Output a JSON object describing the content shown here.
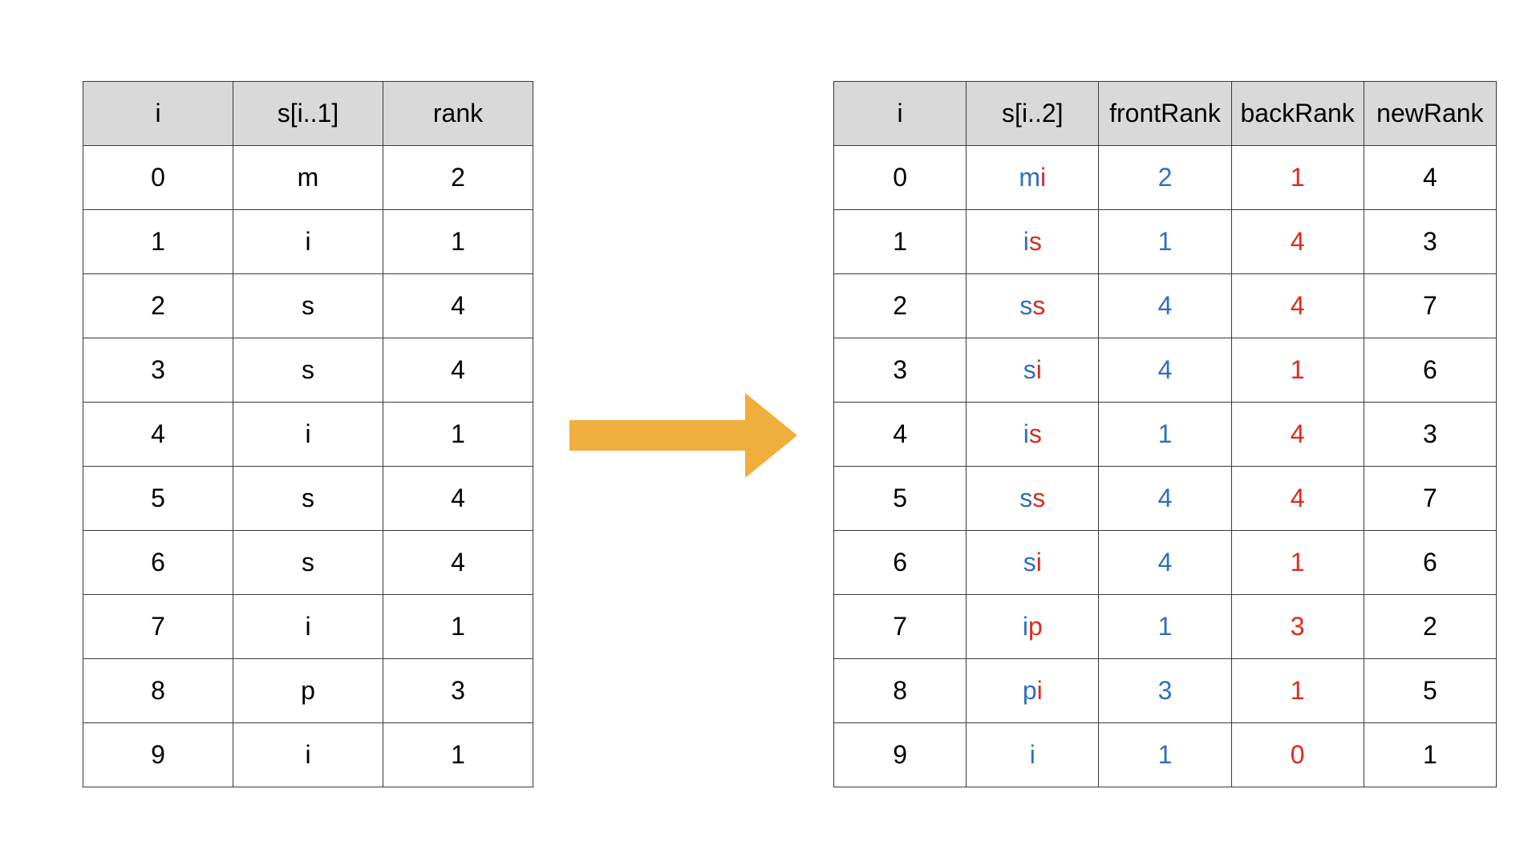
{
  "colors": {
    "header_bg": "#d9d9d9",
    "border": "#3a3a3a",
    "front_blue": "#2e6fbf",
    "back_red": "#de2a1b",
    "arrow_orange": "#f0ae3c"
  },
  "left_table": {
    "headers": [
      "i",
      "s[i..1]",
      "rank"
    ],
    "rows": [
      {
        "i": "0",
        "s": "m",
        "rank": "2"
      },
      {
        "i": "1",
        "s": "i",
        "rank": "1"
      },
      {
        "i": "2",
        "s": "s",
        "rank": "4"
      },
      {
        "i": "3",
        "s": "s",
        "rank": "4"
      },
      {
        "i": "4",
        "s": "i",
        "rank": "1"
      },
      {
        "i": "5",
        "s": "s",
        "rank": "4"
      },
      {
        "i": "6",
        "s": "s",
        "rank": "4"
      },
      {
        "i": "7",
        "s": "i",
        "rank": "1"
      },
      {
        "i": "8",
        "s": "p",
        "rank": "3"
      },
      {
        "i": "9",
        "s": "i",
        "rank": "1"
      }
    ]
  },
  "arrow": {
    "icon": "right-arrow-icon"
  },
  "right_table": {
    "headers": [
      "i",
      "s[i..2]",
      "frontRank",
      "backRank",
      "newRank"
    ],
    "rows": [
      {
        "i": "0",
        "s_front": "m",
        "s_back": "i",
        "frontRank": "2",
        "backRank": "1",
        "newRank": "4"
      },
      {
        "i": "1",
        "s_front": "i",
        "s_back": "s",
        "frontRank": "1",
        "backRank": "4",
        "newRank": "3"
      },
      {
        "i": "2",
        "s_front": "s",
        "s_back": "s",
        "frontRank": "4",
        "backRank": "4",
        "newRank": "7"
      },
      {
        "i": "3",
        "s_front": "s",
        "s_back": "i",
        "frontRank": "4",
        "backRank": "1",
        "newRank": "6"
      },
      {
        "i": "4",
        "s_front": "i",
        "s_back": "s",
        "frontRank": "1",
        "backRank": "4",
        "newRank": "3"
      },
      {
        "i": "5",
        "s_front": "s",
        "s_back": "s",
        "frontRank": "4",
        "backRank": "4",
        "newRank": "7"
      },
      {
        "i": "6",
        "s_front": "s",
        "s_back": "i",
        "frontRank": "4",
        "backRank": "1",
        "newRank": "6"
      },
      {
        "i": "7",
        "s_front": "i",
        "s_back": "p",
        "frontRank": "1",
        "backRank": "3",
        "newRank": "2"
      },
      {
        "i": "8",
        "s_front": "p",
        "s_back": "i",
        "frontRank": "3",
        "backRank": "1",
        "newRank": "5"
      },
      {
        "i": "9",
        "s_front": "i",
        "s_back": "",
        "frontRank": "1",
        "backRank": "0",
        "newRank": "1"
      }
    ]
  }
}
